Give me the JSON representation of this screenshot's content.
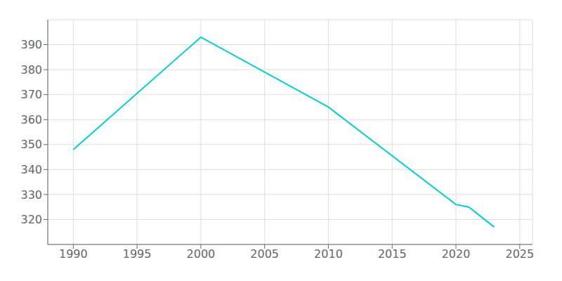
{
  "chart_data": {
    "type": "line",
    "x": [
      1990,
      2000,
      2010,
      2020,
      2021,
      2022,
      2023
    ],
    "values": [
      348,
      393,
      365,
      326,
      325,
      321,
      317
    ],
    "color": "#00CED1",
    "xlim": [
      1988,
      2026
    ],
    "xticks": [
      1990,
      1995,
      2000,
      2005,
      2010,
      2015,
      2020,
      2025
    ],
    "ylim": [
      310,
      400
    ],
    "yticks": [
      320,
      330,
      340,
      350,
      360,
      370,
      380,
      390
    ],
    "grid": true
  }
}
